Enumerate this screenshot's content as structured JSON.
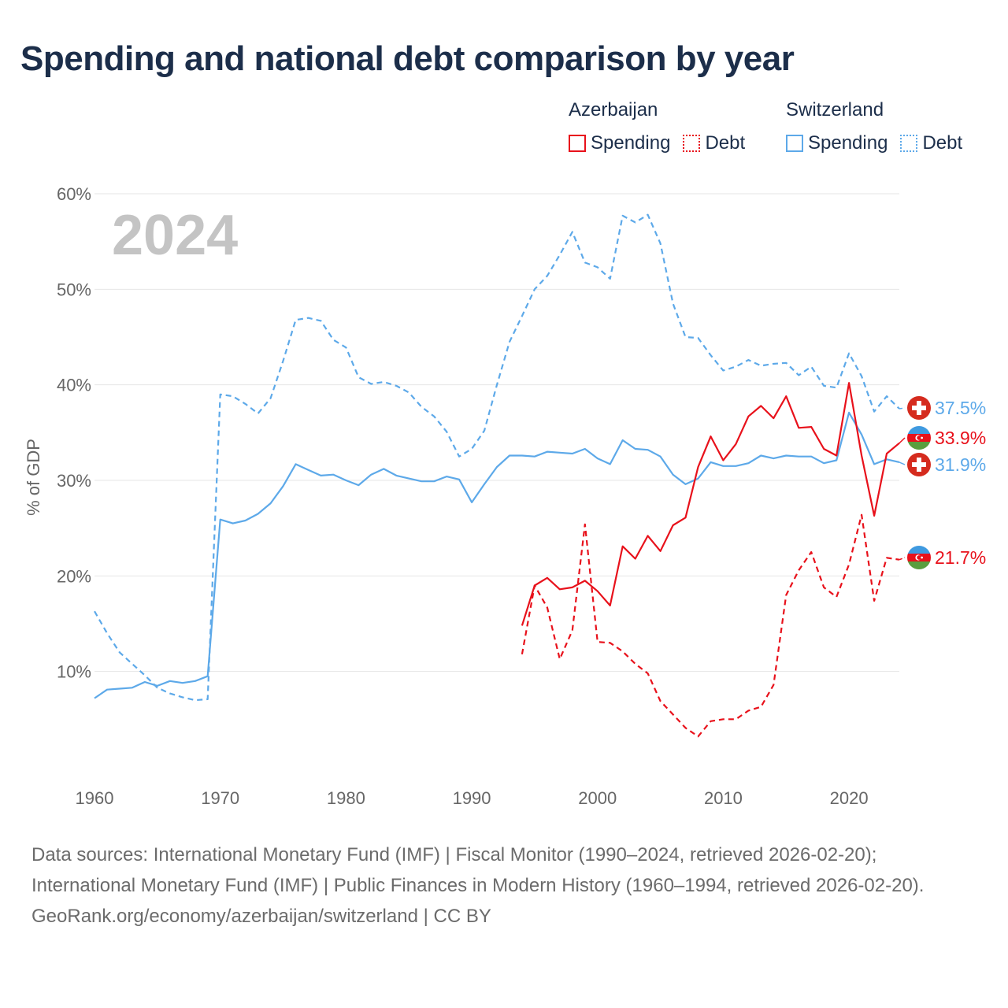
{
  "title": "Spending and national debt comparison by year",
  "legend": {
    "groups": [
      {
        "country": "Azerbaijan",
        "items": [
          "Spending",
          "Debt"
        ]
      },
      {
        "country": "Switzerland",
        "items": [
          "Spending",
          "Debt"
        ]
      }
    ]
  },
  "colors": {
    "azerbaijan": "#e8111b",
    "switzerland": "#5da9e9",
    "grid": "#e6e6e6",
    "axis_text": "#666666",
    "year_watermark": "#c4c4c4"
  },
  "icons": {
    "azerbaijan": "azerbaijan-flag-icon",
    "switzerland": "switzerland-flag-icon"
  },
  "chart_data": {
    "type": "line",
    "year_label": "2024",
    "ylabel": "% of GDP",
    "xlim": [
      1960,
      2024
    ],
    "ylim": [
      0,
      60
    ],
    "grid": true,
    "x_ticks": [
      "1960",
      "1970",
      "1980",
      "1990",
      "2000",
      "2010",
      "2020"
    ],
    "y_ticks": [
      "10%",
      "20%",
      "30%",
      "40%",
      "50%",
      "60%"
    ],
    "series": [
      {
        "name": "Switzerland Debt",
        "country": "Switzerland",
        "kind": "debt",
        "color": "#5da9e9",
        "dashed": true,
        "start_year": 1960,
        "values": [
          16.3,
          14.0,
          12.0,
          10.8,
          9.6,
          8.3,
          7.7,
          7.3,
          7.0,
          7.1,
          39.0,
          38.8,
          38.0,
          37.0,
          38.6,
          42.5,
          46.8,
          47.0,
          46.7,
          44.7,
          43.9,
          40.8,
          40.1,
          40.3,
          39.9,
          39.2,
          37.7,
          36.7,
          35.1,
          32.5,
          33.3,
          35.2,
          40.0,
          44.5,
          47.2,
          50.0,
          51.4,
          53.6,
          56.0,
          52.8,
          52.3,
          51.1,
          57.7,
          57.0,
          57.8,
          54.8,
          48.5,
          45.0,
          44.9,
          43.1,
          41.5,
          41.9,
          42.6,
          42.0,
          42.2,
          42.3,
          41.0,
          41.9,
          39.9,
          39.7,
          43.3,
          40.9,
          37.2,
          38.8,
          37.5
        ]
      },
      {
        "name": "Switzerland Spending",
        "country": "Switzerland",
        "kind": "spending",
        "color": "#5da9e9",
        "dashed": false,
        "start_year": 1960,
        "values": [
          7.2,
          8.1,
          8.2,
          8.3,
          8.9,
          8.5,
          9.0,
          8.8,
          9.0,
          9.5,
          25.9,
          25.5,
          25.8,
          26.5,
          27.6,
          29.4,
          31.7,
          31.1,
          30.5,
          30.6,
          30.0,
          29.5,
          30.6,
          31.2,
          30.5,
          30.2,
          29.9,
          29.9,
          30.4,
          30.1,
          27.7,
          29.6,
          31.4,
          32.6,
          32.6,
          32.5,
          33.0,
          32.9,
          32.8,
          33.3,
          32.3,
          31.7,
          34.2,
          33.3,
          33.2,
          32.5,
          30.6,
          29.6,
          30.2,
          31.9,
          31.5,
          31.5,
          31.8,
          32.6,
          32.3,
          32.6,
          32.5,
          32.5,
          31.8,
          32.1,
          37.1,
          34.8,
          31.7,
          32.2,
          31.9
        ]
      },
      {
        "name": "Azerbaijan Spending",
        "country": "Azerbaijan",
        "kind": "spending",
        "color": "#e8111b",
        "dashed": false,
        "start_year": 1994,
        "values": [
          14.8,
          19.0,
          19.8,
          18.6,
          18.8,
          19.5,
          18.4,
          16.9,
          23.1,
          21.8,
          24.2,
          22.6,
          25.3,
          26.1,
          31.4,
          34.6,
          32.1,
          33.8,
          36.7,
          37.8,
          36.5,
          38.8,
          35.5,
          35.6,
          33.3,
          32.6,
          40.2,
          32.6,
          26.3,
          32.8,
          33.9
        ]
      },
      {
        "name": "Azerbaijan Debt",
        "country": "Azerbaijan",
        "kind": "debt",
        "color": "#e8111b",
        "dashed": true,
        "start_year": 1994,
        "values": [
          11.8,
          19.0,
          16.7,
          11.3,
          14.3,
          25.4,
          13.1,
          13.0,
          12.1,
          10.8,
          9.8,
          6.9,
          5.5,
          4.1,
          3.2,
          4.8,
          5.0,
          5.0,
          5.9,
          6.3,
          8.6,
          18.0,
          20.6,
          22.5,
          18.8,
          17.8,
          21.2,
          26.4,
          17.4,
          21.9,
          21.7
        ]
      }
    ],
    "end_labels": [
      {
        "series": "Switzerland Debt",
        "text": "37.5%",
        "value": 37.5,
        "icon": "switzerland-flag-icon"
      },
      {
        "series": "Azerbaijan Spending",
        "text": "33.9%",
        "value": 33.9,
        "icon": "azerbaijan-flag-icon"
      },
      {
        "series": "Switzerland Spending",
        "text": "31.9%",
        "value": 31.9,
        "icon": "switzerland-flag-icon"
      },
      {
        "series": "Azerbaijan Debt",
        "text": "21.7%",
        "value": 21.7,
        "icon": "azerbaijan-flag-icon"
      }
    ]
  },
  "footer": {
    "sources": "Data sources: International Monetary Fund (IMF) | Fiscal Monitor (1990–2024, retrieved 2026-02-20); International Monetary Fund (IMF) | Public Finances in Modern History (1960–1994, retrieved 2026-02-20).",
    "credit": "GeoRank.org/economy/azerbaijan/switzerland | CC BY"
  }
}
